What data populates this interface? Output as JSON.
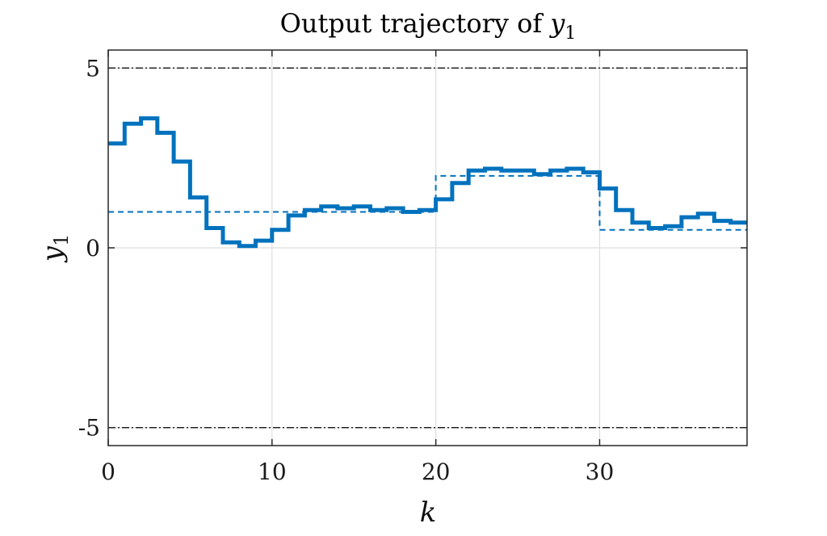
{
  "chart_data": {
    "type": "line",
    "title": "Output trajectory of",
    "title_var": "y",
    "title_sub": "1",
    "xlabel": "k",
    "ylabel_var": "y",
    "ylabel_sub": "1",
    "xlim": [
      0,
      39
    ],
    "ylim": [
      -5.5,
      5.5
    ],
    "xticks": [
      0,
      10,
      20,
      30
    ],
    "yticks": [
      -5,
      0,
      5
    ],
    "xtick_labels": [
      "0",
      "10",
      "20",
      "30"
    ],
    "ytick_labels": [
      "-5",
      "0",
      "5"
    ],
    "grid": true,
    "series": [
      {
        "style": "stairs-solid",
        "color": "#0072BD",
        "values": [
          2.9,
          3.45,
          3.6,
          3.2,
          2.4,
          1.4,
          0.55,
          0.15,
          0.05,
          0.2,
          0.5,
          0.9,
          1.05,
          1.15,
          1.1,
          1.15,
          1.05,
          1.1,
          1.0,
          1.05,
          1.35,
          1.8,
          2.15,
          2.2,
          2.15,
          2.15,
          2.05,
          2.15,
          2.2,
          2.1,
          1.65,
          1.05,
          0.7,
          0.55,
          0.6,
          0.85,
          0.95,
          0.75,
          0.7
        ]
      },
      {
        "style": "stairs-dashed",
        "color": "#0072BD",
        "values": [
          1.0,
          1.0,
          1.0,
          1.0,
          1.0,
          1.0,
          1.0,
          1.0,
          1.0,
          1.0,
          1.0,
          1.0,
          1.0,
          1.0,
          1.0,
          1.0,
          1.0,
          1.0,
          1.0,
          1.0,
          2.0,
          2.0,
          2.0,
          2.0,
          2.0,
          2.0,
          2.0,
          2.0,
          2.0,
          2.0,
          0.5,
          0.5,
          0.5,
          0.5,
          0.5,
          0.5,
          0.5,
          0.5,
          0.5
        ]
      }
    ],
    "constraints": [
      5,
      -5
    ],
    "constraint_color": "#000000"
  }
}
